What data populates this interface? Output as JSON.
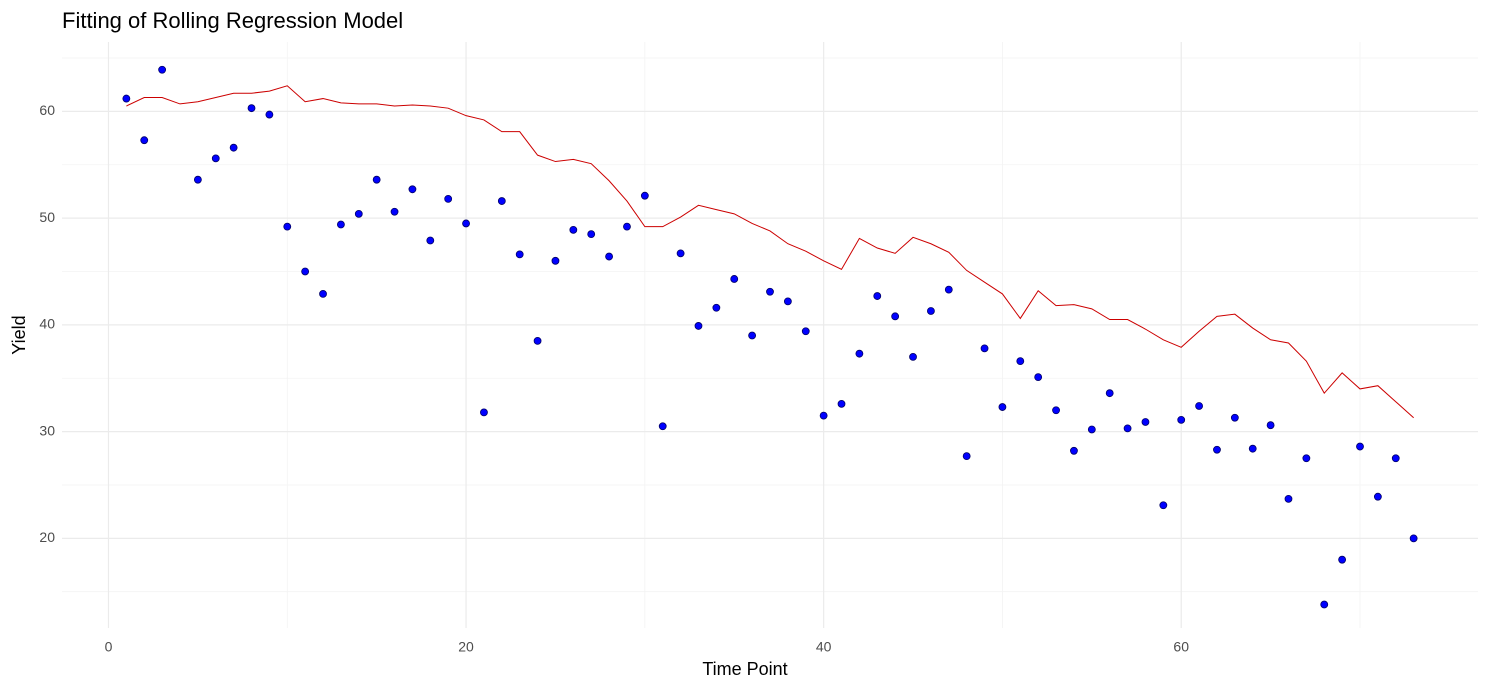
{
  "chart_data": {
    "type": "scatter",
    "title": "Fitting of Rolling Regression Model",
    "x_label": "Time Point",
    "y_label": "Yield",
    "x": [
      1,
      2,
      3,
      4,
      5,
      6,
      7,
      8,
      9,
      10,
      11,
      12,
      13,
      14,
      15,
      16,
      17,
      18,
      19,
      20,
      21,
      22,
      23,
      24,
      25,
      26,
      27,
      28,
      29,
      30,
      31,
      32,
      33,
      34,
      35,
      36,
      37,
      38,
      39,
      40,
      41,
      42,
      43,
      44,
      45,
      46,
      47,
      48,
      49,
      50,
      51,
      52,
      53,
      54,
      55,
      56,
      57,
      58,
      59,
      60,
      61,
      62,
      63,
      64,
      65,
      66,
      67,
      68,
      69,
      70,
      71,
      72,
      73
    ],
    "series": [
      {
        "type": "scatter",
        "color": "#0000ff",
        "values": [
          61.2,
          57.3,
          63.9,
          null,
          53.6,
          55.6,
          56.6,
          60.3,
          59.7,
          49.2,
          45.0,
          42.9,
          49.4,
          50.4,
          53.6,
          50.6,
          52.7,
          47.9,
          51.8,
          49.5,
          31.8,
          51.6,
          46.6,
          38.5,
          46.0,
          48.9,
          48.5,
          46.4,
          49.2,
          52.1,
          30.5,
          46.7,
          39.9,
          41.6,
          44.3,
          39.0,
          43.1,
          42.2,
          39.4,
          31.5,
          32.6,
          37.3,
          42.7,
          40.8,
          37.0,
          41.3,
          43.3,
          27.7,
          37.8,
          32.3,
          36.6,
          35.1,
          32.0,
          28.2,
          30.2,
          33.6,
          30.3,
          30.9,
          23.1,
          31.1,
          32.4,
          28.3,
          31.3,
          28.4,
          30.6,
          23.7,
          27.5,
          13.8,
          18.0,
          28.6,
          23.9,
          27.5,
          20.0
        ]
      },
      {
        "type": "line",
        "color": "#cc0000",
        "values": [
          60.5,
          61.3,
          61.3,
          60.7,
          60.9,
          61.3,
          61.7,
          61.7,
          61.9,
          62.4,
          60.9,
          61.2,
          60.8,
          60.7,
          60.7,
          60.5,
          60.6,
          60.5,
          60.3,
          59.6,
          59.2,
          58.1,
          58.1,
          55.9,
          55.3,
          55.5,
          55.1,
          53.5,
          51.6,
          49.2,
          49.2,
          50.1,
          51.2,
          50.8,
          50.4,
          49.5,
          48.8,
          47.6,
          46.9,
          46.0,
          45.2,
          48.1,
          47.2,
          46.7,
          48.2,
          47.6,
          46.8,
          45.1,
          44.0,
          42.9,
          40.6,
          43.2,
          41.8,
          41.9,
          41.5,
          40.5,
          40.5,
          39.6,
          38.6,
          37.9,
          39.4,
          40.8,
          41.0,
          39.7,
          38.6,
          38.3,
          36.6,
          33.6,
          35.5,
          34.0,
          34.3,
          32.8,
          31.3
        ]
      }
    ],
    "xlim": [
      -2.6,
      76.6
    ],
    "xticks": [
      0,
      20,
      40,
      60
    ],
    "x_minor_ticks": [
      10,
      30,
      50,
      70
    ],
    "ylim": [
      11.6,
      66.5
    ],
    "yticks": [
      20,
      30,
      40,
      50,
      60
    ],
    "y_minor_ticks": [
      15,
      25,
      35,
      45,
      55,
      65
    ],
    "grid": true
  }
}
